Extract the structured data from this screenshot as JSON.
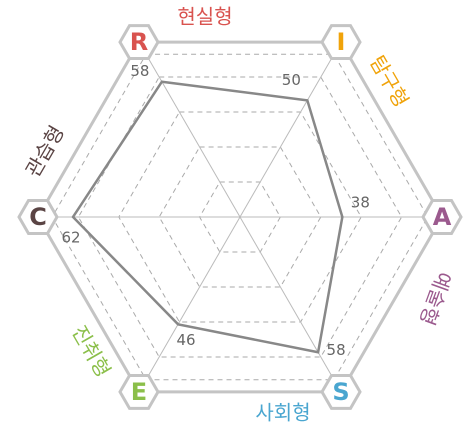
{
  "chart_data": {
    "type": "radar",
    "categories": [
      "R",
      "I",
      "A",
      "S",
      "E",
      "C"
    ],
    "names": [
      "현실형",
      "탐구형",
      "예술형",
      "사회형",
      "진취형",
      "관습형"
    ],
    "colors": [
      "#d9534f",
      "#f0a30a",
      "#9b5a8e",
      "#4aa6d0",
      "#8bbf4a",
      "#5a4444"
    ],
    "values": [
      58,
      50,
      38,
      58,
      46,
      62
    ],
    "ylim": [
      0,
      75
    ],
    "line_color": "#888888"
  }
}
